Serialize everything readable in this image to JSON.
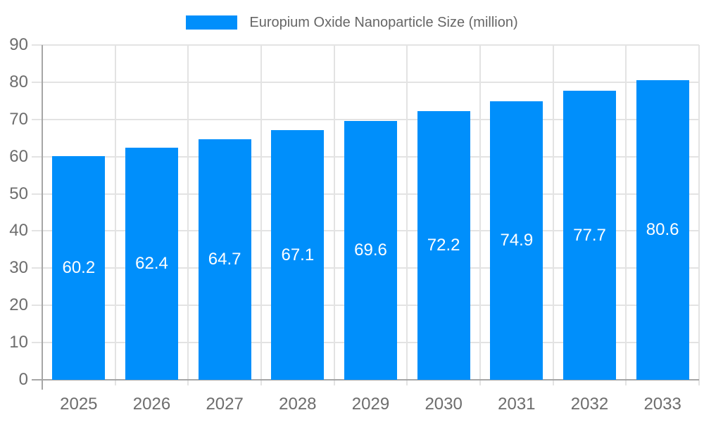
{
  "legend": {
    "label": "Europium Oxide Nanoparticle Size (million)"
  },
  "chart_data": {
    "type": "bar",
    "title": "",
    "categories": [
      "2025",
      "2026",
      "2027",
      "2028",
      "2029",
      "2030",
      "2031",
      "2032",
      "2033"
    ],
    "series": [
      {
        "name": "Europium Oxide Nanoparticle Size (million)",
        "values": [
          60.2,
          62.4,
          64.7,
          67.1,
          69.6,
          72.2,
          74.9,
          77.7,
          80.6
        ]
      }
    ],
    "value_labels": [
      "60.2",
      "62.4",
      "64.7",
      "67.1",
      "69.6",
      "72.2",
      "74.9",
      "77.7",
      "80.6"
    ],
    "xlabel": "",
    "ylabel": "",
    "ylim": [
      0,
      90
    ],
    "yticks": [
      0,
      10,
      20,
      30,
      40,
      50,
      60,
      70,
      80,
      90
    ],
    "grid": "horizontal gridlines plus vertical gridlines at category boundaries",
    "legend_position": "top-center",
    "bar_label_position": "middle-center"
  },
  "colors": {
    "bar": "#008FFB",
    "bar_label": "#ffffff",
    "grid": "#e3e3e3",
    "axis_line": "#a6a6a6",
    "tick_label": "#6d6d6d",
    "legend_text": "#666666",
    "background": "#ffffff"
  }
}
